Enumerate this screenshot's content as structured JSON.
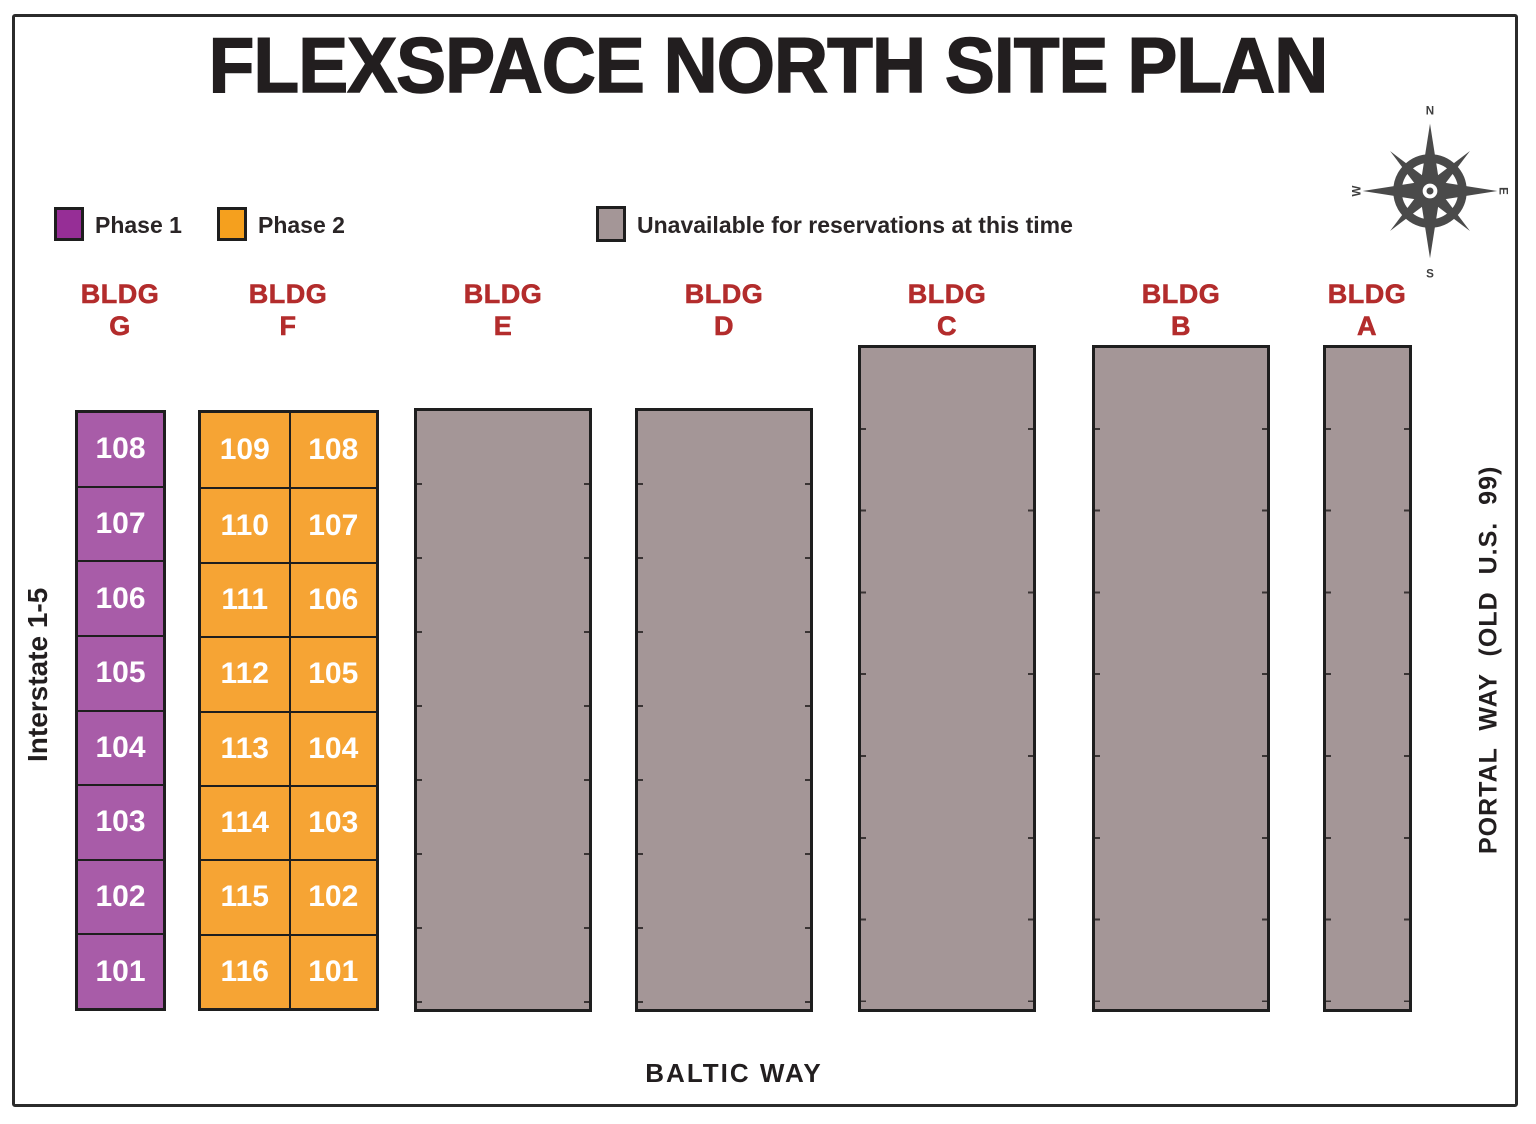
{
  "title": "FLEXSPACE NORTH SITE PLAN",
  "legend": {
    "phase1": {
      "label": "Phase 1",
      "color": "#962e96"
    },
    "phase2": {
      "label": "Phase 2",
      "color": "#f5a01e"
    },
    "unavailable": {
      "label": "Unavailable for reservations at this time",
      "color": "#a49697"
    }
  },
  "compass": {
    "n": "N",
    "s": "S",
    "e": "E",
    "w": "W"
  },
  "roads": {
    "left": "Interstate 1-5",
    "right": "PORTAL WAY (OLD U.S. 99)",
    "bottom": "BALTIC WAY"
  },
  "buildings": {
    "g": {
      "label": "BLDG",
      "letter": "G",
      "legend_key": "phase1",
      "units": [
        "108",
        "107",
        "106",
        "105",
        "104",
        "103",
        "102",
        "101"
      ]
    },
    "f": {
      "label": "BLDG",
      "letter": "F",
      "legend_key": "phase2",
      "units_grid": [
        "109",
        "108",
        "110",
        "107",
        "111",
        "106",
        "112",
        "105",
        "113",
        "104",
        "114",
        "103",
        "115",
        "102",
        "116",
        "101"
      ]
    },
    "e": {
      "label": "BLDG",
      "letter": "E",
      "legend_key": "unavailable"
    },
    "d": {
      "label": "BLDG",
      "letter": "D",
      "legend_key": "unavailable"
    },
    "c": {
      "label": "BLDG",
      "letter": "C",
      "legend_key": "unavailable"
    },
    "b": {
      "label": "BLDG",
      "letter": "B",
      "legend_key": "unavailable"
    },
    "a": {
      "label": "BLDG",
      "letter": "A",
      "legend_key": "unavailable"
    }
  },
  "colors": {
    "unit_purple": "#a85ca8",
    "unit_orange": "#f6a434",
    "building_gray": "#a49697",
    "bldg_label_red": "#b32c2c",
    "compass_gray": "#4a4a4a",
    "line_black": "#1e1e1e"
  }
}
